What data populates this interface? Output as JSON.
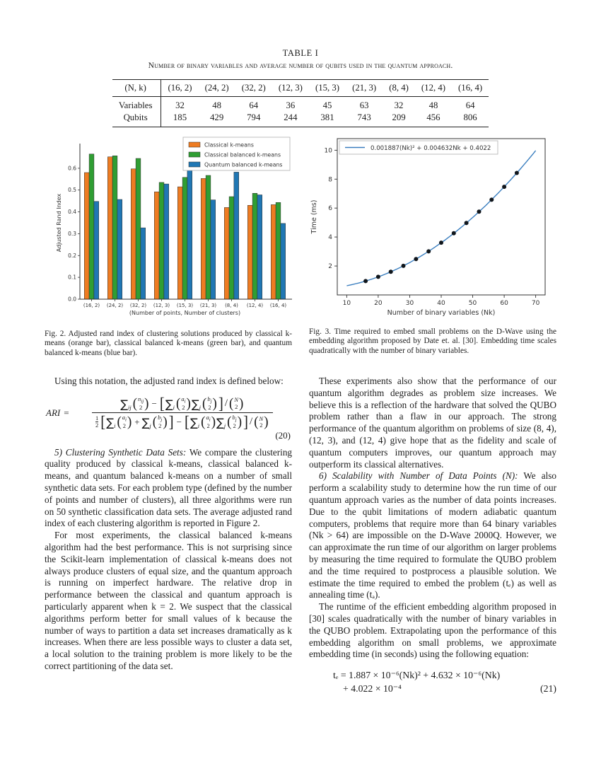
{
  "table1": {
    "label": "TABLE I",
    "caption": "Number of binary variables and average number of qubits used in the quantum approach.",
    "header": [
      "(N, k)",
      "(16, 2)",
      "(24, 2)",
      "(32, 2)",
      "(12, 3)",
      "(15, 3)",
      "(21, 3)",
      "(8, 4)",
      "(12, 4)",
      "(16, 4)"
    ],
    "rows": [
      {
        "label": "Variables",
        "values": [
          "32",
          "48",
          "64",
          "36",
          "45",
          "63",
          "32",
          "48",
          "64"
        ]
      },
      {
        "label": "Qubits",
        "values": [
          "185",
          "429",
          "794",
          "244",
          "381",
          "743",
          "209",
          "456",
          "806"
        ]
      }
    ]
  },
  "chart_data": [
    {
      "id": "fig2",
      "type": "bar",
      "title": "",
      "categories": [
        "(16, 2)",
        "(24, 2)",
        "(32, 2)",
        "(12, 3)",
        "(15, 3)",
        "(21, 3)",
        "(8, 4)",
        "(12, 4)",
        "(16, 4)"
      ],
      "series": [
        {
          "name": "Classical k-means",
          "color": "#ee7c22",
          "values": [
            0.58,
            0.652,
            0.597,
            0.492,
            0.515,
            0.553,
            0.42,
            0.43,
            0.433
          ]
        },
        {
          "name": "Classical balanced k-means",
          "color": "#2f9e33",
          "values": [
            0.665,
            0.657,
            0.645,
            0.535,
            0.558,
            0.567,
            0.47,
            0.485,
            0.443
          ]
        },
        {
          "name": "Quantum balanced k-means",
          "color": "#2077b4",
          "values": [
            0.448,
            0.457,
            0.327,
            0.528,
            0.592,
            0.455,
            0.582,
            0.478,
            0.347
          ]
        }
      ],
      "xlabel": "(Number of points, Number of clusters)",
      "ylabel": "Adjusted Rand Index",
      "ylim": [
        0,
        0.7
      ],
      "yticks": [
        0.0,
        0.1,
        0.2,
        0.3,
        0.4,
        0.5,
        0.6
      ],
      "legend_position": "upper right",
      "grid": false
    },
    {
      "id": "fig3",
      "type": "line",
      "title": "",
      "legend": "0.001887(Nk)² + 0.004632Nk + 0.4022",
      "line_color": "#3a7ebf",
      "point_color": "#10161c",
      "fit_coeffs": {
        "a": 0.001887,
        "b": 0.004632,
        "c": 0.4022
      },
      "curve_x_range": [
        10,
        70
      ],
      "points_x": [
        16,
        20,
        24,
        28,
        32,
        36,
        40,
        44,
        48,
        52,
        56,
        60,
        64
      ],
      "points_y": [
        0.96,
        1.25,
        1.6,
        2.01,
        2.48,
        3.01,
        3.61,
        4.26,
        4.97,
        5.75,
        6.58,
        7.47,
        8.43
      ],
      "xlabel": "Number of binary variables (Nk)",
      "ylabel": "Time (ms)",
      "xlim": [
        7,
        73
      ],
      "ylim": [
        0,
        10.8
      ],
      "xticks": [
        10,
        20,
        30,
        40,
        50,
        60,
        70
      ],
      "yticks": [
        2,
        4,
        6,
        8,
        10
      ],
      "legend_position": "upper left",
      "grid": false
    }
  ],
  "figures": {
    "fig2_caption": "Fig. 2.   Adjusted rand index of clustering solutions produced by classical k-means (orange bar), classical balanced k-means (green bar), and quantum balanced k-means (blue bar).",
    "fig3_caption": "Fig. 3.   Time required to embed small problems on the D-Wave using the embedding algorithm proposed by Date et. al. [30]. Embedding time scales quadratically with the number of binary variables."
  },
  "left_column": {
    "intro": "Using this notation, the adjusted rand index is defined below:",
    "eq20": {
      "lhs": "ARI",
      "rel": "=",
      "num": [
        {
          "k": "sum",
          "sub": "ij"
        },
        {
          "k": "binom",
          "top": "n",
          "tsub": "ij",
          "bot": "2"
        },
        {
          "k": "op",
          "v": "−"
        },
        {
          "k": "lb"
        },
        {
          "k": "sum",
          "sub": "i"
        },
        {
          "k": "binom",
          "top": "a",
          "tsub": "i",
          "bot": "2"
        },
        {
          "k": "sum",
          "sub": "j"
        },
        {
          "k": "binom",
          "top": "b",
          "tsub": "j",
          "bot": "2"
        },
        {
          "k": "rb"
        },
        {
          "k": "div"
        },
        {
          "k": "binom",
          "top": "N",
          "tsub": "",
          "bot": "2"
        }
      ],
      "den": [
        {
          "k": "half"
        },
        {
          "k": "lb"
        },
        {
          "k": "sum",
          "sub": "i"
        },
        {
          "k": "binom",
          "top": "a",
          "tsub": "i",
          "bot": "2"
        },
        {
          "k": "op",
          "v": "+"
        },
        {
          "k": "sum",
          "sub": "j"
        },
        {
          "k": "binom",
          "top": "b",
          "tsub": "j",
          "bot": "2"
        },
        {
          "k": "rb"
        },
        {
          "k": "op",
          "v": "−"
        },
        {
          "k": "lb"
        },
        {
          "k": "sum",
          "sub": "i"
        },
        {
          "k": "binom",
          "top": "a",
          "tsub": "i",
          "bot": "2"
        },
        {
          "k": "sum",
          "sub": "j"
        },
        {
          "k": "binom",
          "top": "b",
          "tsub": "j",
          "bot": "2"
        },
        {
          "k": "rb"
        },
        {
          "k": "div"
        },
        {
          "k": "binom",
          "top": "N",
          "tsub": "",
          "bot": "2"
        }
      ],
      "number": "(20)"
    },
    "sec5_heading": "5) Clustering Synthetic Data Sets:",
    "sec5_text": "We compare the clustering quality produced by classical k-means, classical balanced k-means, and quantum balanced k-means on a number of small synthetic data sets. For each problem type (defined by the number of points and number of clusters), all three algorithms were run on 50 synthetic classification data sets. The average adjusted rand index of each clustering algorithm is reported in Figure 2.",
    "par2": "For most experiments, the classical balanced k-means algorithm had the best performance. This is not surprising since the Scikit-learn implementation of classical k-means does not always produce clusters of equal size, and the quantum approach is running on imperfect hardware. The relative drop in performance between the classical and quantum approach is particularly apparent when k = 2. We suspect that the classical algorithms perform better for small values of k because the number of ways to partition a data set increases dramatically as k increases. When there are less possible ways to cluster a data set, a local solution to the training problem is more likely to be the correct partitioning of the data set."
  },
  "right_column": {
    "par1": "These experiments also show that the performance of our quantum algorithm degrades as problem size increases. We believe this is a reflection of the hardware that solved the QUBO problem rather than a flaw in our approach. The strong performance of the quantum algorithm on problems of size (8, 4), (12, 3), and (12, 4) give hope that as the fidelity and scale of quantum computers improves, our quantum approach may outperform its classical alternatives.",
    "sec6_heading": "6) Scalability with Number of Data Points (N):",
    "sec6_text": "We also perform a scalability study to determine how the run time of our quantum approach varies as the number of data points increases. Due to the qubit limitations of modern adiabatic quantum computers, problems that require more than 64 binary variables (Nk > 64) are impossible on the D-Wave 2000Q. However, we can approximate the run time of our algorithm on larger problems by measuring the time required to formulate the QUBO problem and the time required to postprocess a plausible solution. We estimate the time required to embed the problem (tₑ) as well as annealing time (tₐ).",
    "par3": "The runtime of the efficient embedding algorithm proposed in [30] scales quadratically with the number of binary variables in the QUBO problem. Extrapolating upon the performance of this embedding algorithm on small problems, we approximate embedding time (in seconds) using the following equation:",
    "eq21": {
      "lines": [
        "tₑ = 1.887 × 10⁻⁶(Nk)² + 4.632 × 10⁻⁶(Nk)",
        "+ 4.022 × 10⁻⁴"
      ],
      "number": "(21)"
    }
  }
}
